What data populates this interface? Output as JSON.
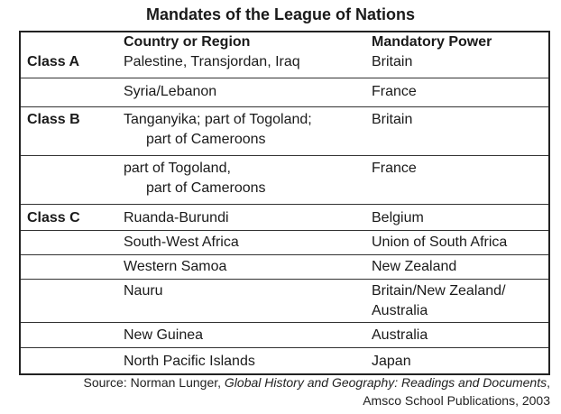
{
  "title": "Mandates of the League of Nations",
  "headers": {
    "country": "Country or Region",
    "power": "Mandatory Power"
  },
  "rows": [
    {
      "cls": "Class A",
      "country": [
        "Palestine, Transjordan, Iraq"
      ],
      "power": [
        "Britain"
      ]
    },
    {
      "cls": "",
      "country": [
        "Syria/Lebanon"
      ],
      "power": [
        "France"
      ]
    },
    {
      "cls": "Class B",
      "country": [
        "Tanganyika; part of Togoland;",
        "part of Cameroons"
      ],
      "power": [
        "Britain"
      ]
    },
    {
      "cls": "",
      "country": [
        "part of Togoland,",
        "part of Cameroons"
      ],
      "power": [
        "France"
      ]
    },
    {
      "cls": "Class C",
      "country": [
        "Ruanda-Burundi"
      ],
      "power": [
        "Belgium"
      ]
    },
    {
      "cls": "",
      "country": [
        "South-West Africa"
      ],
      "power": [
        "Union of South Africa"
      ]
    },
    {
      "cls": "",
      "country": [
        "Western Samoa"
      ],
      "power": [
        "New Zealand"
      ]
    },
    {
      "cls": "",
      "country": [
        "Nauru"
      ],
      "power": [
        "Britain/New Zealand/",
        "Australia"
      ]
    },
    {
      "cls": "",
      "country": [
        "New Guinea"
      ],
      "power": [
        "Australia"
      ]
    },
    {
      "cls": "",
      "country": [
        "North Pacific Islands"
      ],
      "power": [
        "Japan"
      ]
    }
  ],
  "source": {
    "prefix": "Source: Norman Lunger, ",
    "work": "Global History and Geography: Readings and Documents",
    "suffix": ",",
    "publisher": "Amsco School Publications, 2003"
  }
}
